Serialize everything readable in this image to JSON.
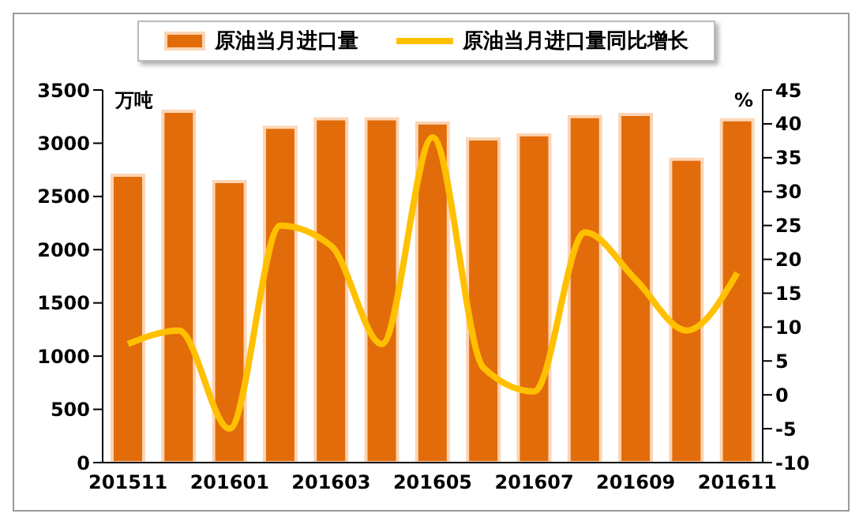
{
  "chart_data": {
    "type": "bar",
    "categories": [
      "201511",
      null,
      "201601",
      null,
      "201603",
      null,
      "201605",
      null,
      "201607",
      null,
      "201609",
      null,
      "201611"
    ],
    "series": [
      {
        "name": "原油当月进口量",
        "color": "#e36c0a",
        "values": [
          2700,
          3300,
          2640,
          3150,
          3230,
          3230,
          3190,
          3040,
          3080,
          3250,
          3270,
          2850,
          3220
        ]
      },
      {
        "name": "原油当月进口量同比增长",
        "type": "line",
        "axis": "y2",
        "color": "#ffc000",
        "values": [
          7.5,
          9.5,
          -5,
          25,
          22,
          7.5,
          38,
          4,
          0.5,
          24,
          17,
          9.5,
          18
        ]
      }
    ],
    "ylabel": "万吨",
    "y2label": "%",
    "ylim": [
      0,
      3500
    ],
    "yticks": [
      0,
      500,
      1000,
      1500,
      2000,
      2500,
      3000,
      3500
    ],
    "y2lim": [
      -10,
      45
    ],
    "y2ticks": [
      -10,
      -5,
      0,
      5,
      10,
      15,
      20,
      25,
      30,
      35,
      40,
      45
    ],
    "legend": "top",
    "grid": false,
    "marker": "none",
    "line_style": "solid"
  }
}
